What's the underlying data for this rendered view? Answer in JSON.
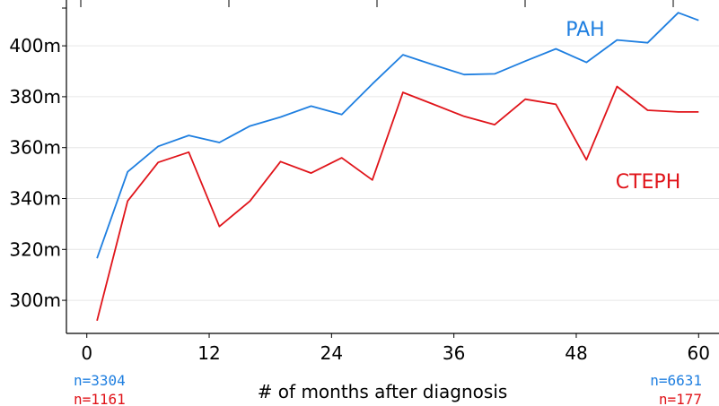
{
  "chart_data": {
    "type": "line",
    "xlabel": "# of months after diagnosis",
    "ylabel": "",
    "xlim": [
      -2,
      62
    ],
    "ylim": [
      287,
      418
    ],
    "x_ticks": [
      0,
      12,
      24,
      36,
      48,
      60
    ],
    "x_tick_labels": [
      "0",
      "12",
      "24",
      "36",
      "48",
      "60"
    ],
    "y_ticks": [
      300,
      320,
      340,
      360,
      380,
      400
    ],
    "y_tick_labels": [
      "300m",
      "320m",
      "340m",
      "360m",
      "380m",
      "400m"
    ],
    "grid": "horizontal",
    "series": [
      {
        "name": "PAH",
        "color": "#1f7fe0",
        "x": [
          1,
          4,
          7,
          10,
          13,
          16,
          19,
          22,
          25,
          28,
          31,
          34,
          37,
          40,
          43,
          46,
          49,
          52,
          55,
          58,
          60
        ],
        "values": [
          316.5,
          350.5,
          360.5,
          364.8,
          362,
          368.5,
          372,
          376.3,
          373,
          385,
          396.5,
          392.5,
          388.7,
          389,
          394,
          398.8,
          393.5,
          402.3,
          401.2,
          413,
          410
        ]
      },
      {
        "name": "CTEPH",
        "color": "#e0141a",
        "x": [
          1,
          4,
          7,
          10,
          13,
          16,
          19,
          22,
          25,
          28,
          31,
          34,
          37,
          40,
          43,
          46,
          49,
          52,
          55,
          58,
          60
        ],
        "values": [
          292,
          339,
          354.2,
          358.2,
          329,
          339,
          354.5,
          350,
          356,
          347.3,
          381.7,
          377,
          372.3,
          369,
          379,
          377,
          355.2,
          384,
          374.7,
          374,
          374
        ]
      }
    ],
    "annotations": {
      "n_first": {
        "pah": "n=3304",
        "cteph": "n=1161"
      },
      "n_last": {
        "pah": "n=6631",
        "cteph": "n=177"
      }
    }
  }
}
